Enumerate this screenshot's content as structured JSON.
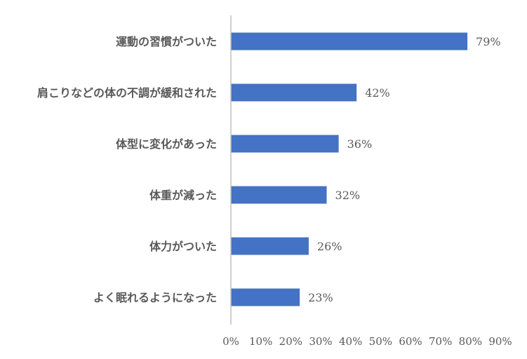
{
  "chart_data": {
    "type": "bar",
    "orientation": "horizontal",
    "title": "",
    "xlabel": "",
    "ylabel": "",
    "categories": [
      "運動の習慣がついた",
      "肩こりなどの体の不調が緩和された",
      "体型に変化があった",
      "体重が減った",
      "体力がついた",
      "よく眠れるようになった"
    ],
    "values": [
      79,
      42,
      36,
      32,
      26,
      23
    ],
    "value_labels": [
      "79%",
      "42%",
      "36%",
      "32%",
      "26%",
      "23%"
    ],
    "xlim": [
      0,
      90
    ],
    "ticks": [
      "0%",
      "10%",
      "20%",
      "30%",
      "40%",
      "50%",
      "60%",
      "70%",
      "80%",
      "90%"
    ],
    "grid": false,
    "legend": "none",
    "bar_color": "#4472C4"
  }
}
